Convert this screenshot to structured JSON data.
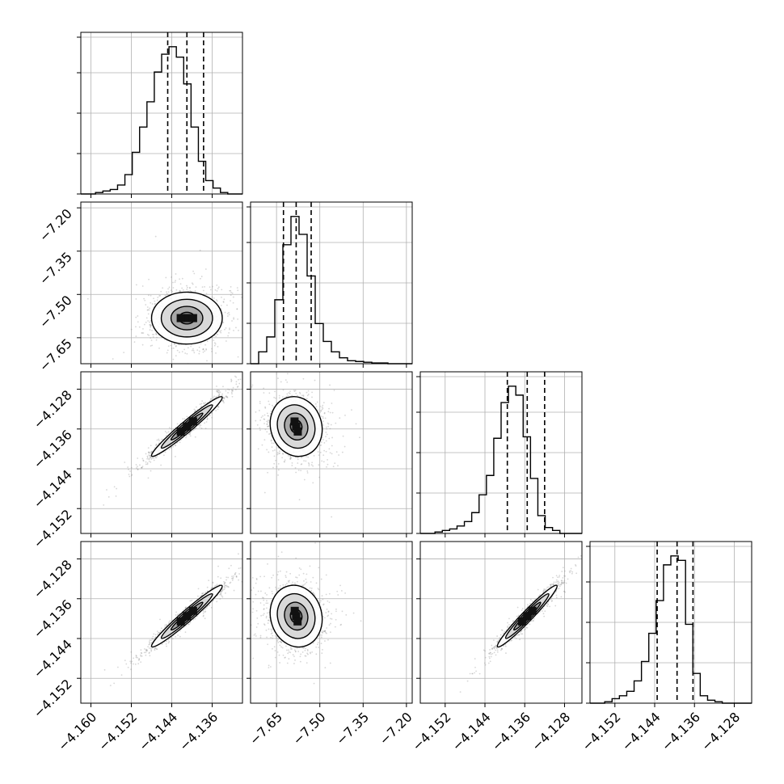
{
  "chart_data": {
    "type": "corner",
    "title": "",
    "grid": true,
    "quantile_line_style": "dashed",
    "colors": {
      "hist": "#000000",
      "contour": "#000000",
      "points": "#8c8c8c",
      "grid": "#b0b0b0",
      "frame": "#000000"
    },
    "parameters": [
      {
        "label": "",
        "range": [
          -4.162,
          -4.13
        ],
        "ticks": [
          "−4.160",
          "−4.152",
          "−4.144",
          "−4.136"
        ],
        "tick_values": [
          -4.16,
          -4.152,
          -4.144,
          -4.136
        ],
        "quantiles": [
          -4.1448,
          -4.141,
          -4.1377
        ],
        "mean": -4.141,
        "sd": 0.0035
      },
      {
        "label": "",
        "range": [
          -7.74,
          -7.18
        ],
        "ticks": [
          "−7.65",
          "−7.50",
          "−7.35",
          "−7.20"
        ],
        "tick_values": [
          -7.65,
          -7.5,
          -7.35,
          -7.2
        ],
        "quantiles": [
          -7.626,
          -7.582,
          -7.53
        ],
        "mean": -7.582,
        "sd": 0.045
      },
      {
        "label": "",
        "range": [
          -4.157,
          -4.1245
        ],
        "ticks": [
          "−4.152",
          "−4.144",
          "−4.136",
          "−4.128"
        ],
        "tick_values": [
          -4.152,
          -4.144,
          -4.136,
          -4.128
        ],
        "quantiles": [
          -4.1395,
          -4.1355,
          -4.132
        ],
        "mean": -4.1355,
        "sd": 0.003
      },
      {
        "label": "",
        "range": [
          -4.157,
          -4.1245
        ],
        "ticks": [
          "−4.152",
          "−4.144",
          "−4.136",
          "−4.128"
        ],
        "tick_values": [
          -4.152,
          -4.144,
          -4.136,
          -4.128
        ],
        "quantiles": [
          -4.1435,
          -4.1395,
          -4.1363
        ],
        "mean": -4.1395,
        "sd": 0.0031
      }
    ],
    "histograms": [
      [
        0.0,
        0.0,
        0.01,
        0.02,
        0.03,
        0.06,
        0.13,
        0.28,
        0.45,
        0.62,
        0.82,
        0.94,
        0.99,
        0.92,
        0.74,
        0.45,
        0.22,
        0.09,
        0.04,
        0.01,
        0.0,
        0.0
      ],
      [
        0.0,
        0.08,
        0.18,
        0.43,
        0.8,
        0.99,
        0.87,
        0.59,
        0.27,
        0.15,
        0.08,
        0.04,
        0.02,
        0.015,
        0.01,
        0.005,
        0.005,
        0.0,
        0.0,
        0.0
      ],
      [
        0.0,
        0.0,
        0.01,
        0.02,
        0.03,
        0.05,
        0.08,
        0.14,
        0.26,
        0.39,
        0.64,
        0.88,
        0.99,
        0.93,
        0.65,
        0.37,
        0.12,
        0.04,
        0.02,
        0.0,
        0.0,
        0.0
      ],
      [
        0.0,
        0.0,
        0.01,
        0.03,
        0.05,
        0.08,
        0.15,
        0.28,
        0.47,
        0.69,
        0.93,
        0.99,
        0.96,
        0.53,
        0.2,
        0.05,
        0.02,
        0.01,
        0.0,
        0.0,
        0.0,
        0.0
      ]
    ],
    "correlations": [
      {
        "row": 1,
        "col": 0,
        "rho": 0.0
      },
      {
        "row": 2,
        "col": 0,
        "rho": 0.97
      },
      {
        "row": 2,
        "col": 1,
        "rho": -0.1
      },
      {
        "row": 3,
        "col": 0,
        "rho": 0.97
      },
      {
        "row": 3,
        "col": 1,
        "rho": -0.1
      },
      {
        "row": 3,
        "col": 2,
        "rho": 0.97
      }
    ]
  }
}
